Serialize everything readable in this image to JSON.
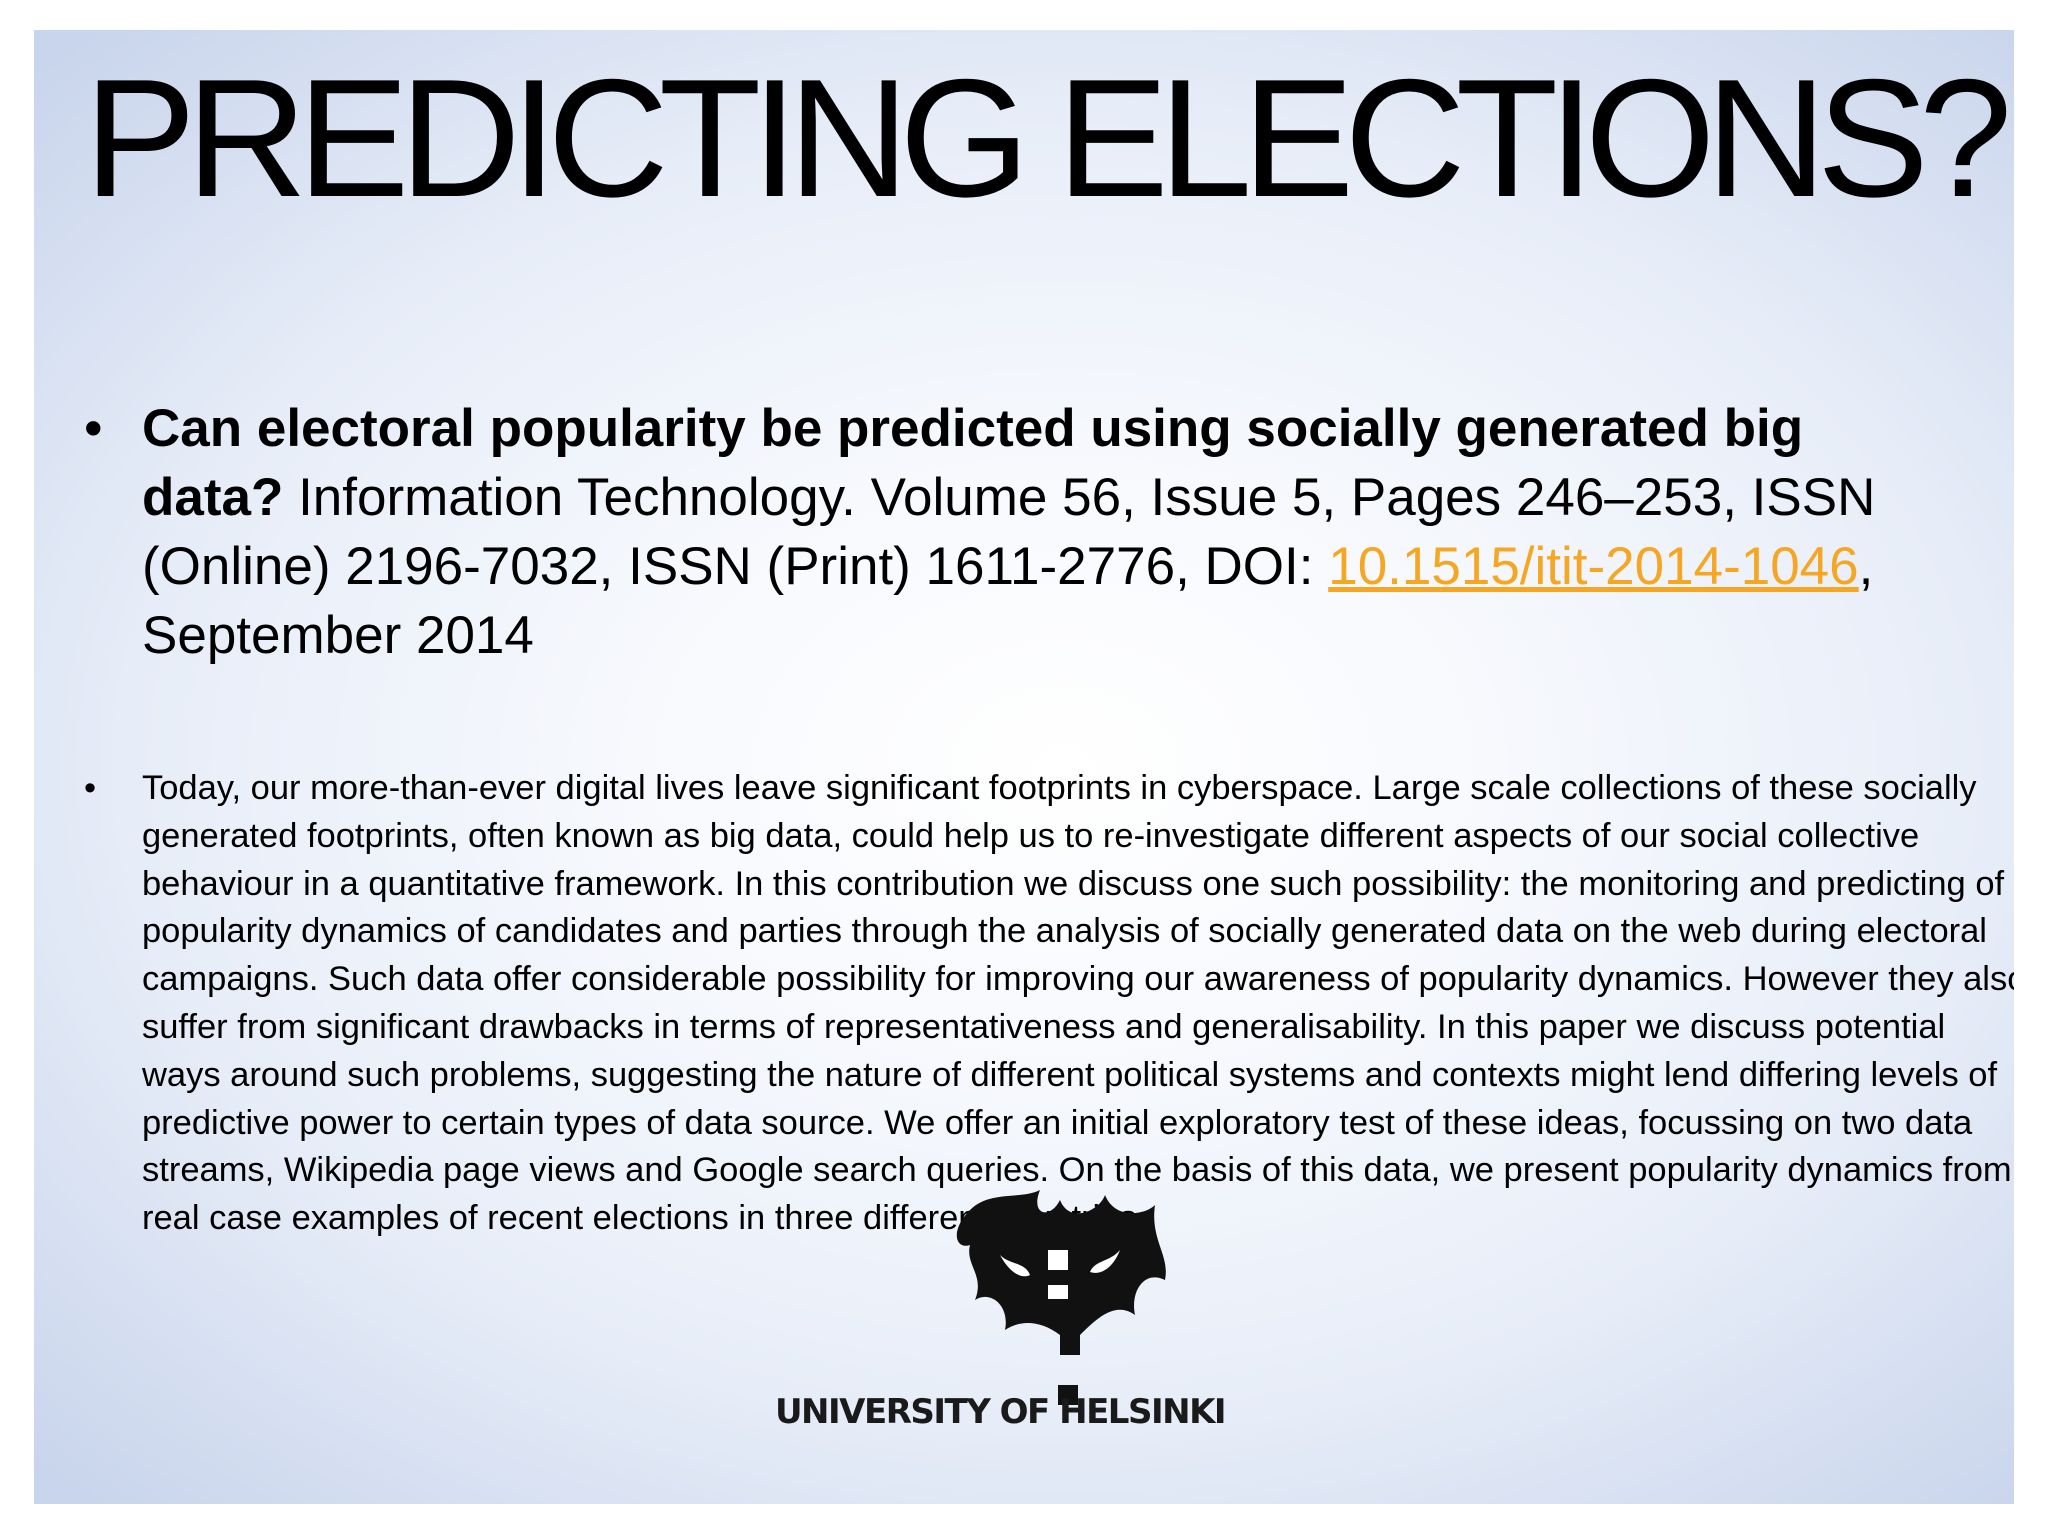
{
  "slide": {
    "title": "PREDICTING ELECTIONS?",
    "bullet_char": "•",
    "citation": {
      "title_bold": "Can electoral popularity be predicted using socially generated big data?",
      "details": " Information Technology. Volume 56, Issue 5, Pages 246–253, ISSN (Online) 2196-7032, ISSN (Print) 1611-2776, DOI: ",
      "doi_link": "10.1515/itit-2014-1046",
      "date": ", September 2014"
    },
    "abstract": "Today, our more-than-ever digital lives leave significant footprints in cyberspace. Large scale collections of these socially generated footprints, often known as big data, could help us to re-investigate different aspects of our social collective behaviour in a quantitative framework. In this contribution we discuss one such possibility: the monitoring and predicting of popularity dynamics of candidates and parties through the analysis of socially generated data on the web during electoral campaigns. Such data offer considerable possibility for improving our awareness of popularity dynamics. However they also suffer from significant drawbacks in terms of representativeness and generalisability. In this paper we discuss potential ways around such problems, suggesting the nature of different political systems and contexts might lend differing levels of predictive power to certain types of data source. We offer an initial exploratory test of these ideas, focussing on two data streams, Wikipedia page views and Google search queries. On the basis of this data, we present popularity dynamics from real case examples of recent elections in three different countries.",
    "link_color": "#f5a623"
  },
  "logo": {
    "icon": "university-of-helsinki-flame-logo",
    "text": "UNIVERSITY OF HELSINKI"
  }
}
